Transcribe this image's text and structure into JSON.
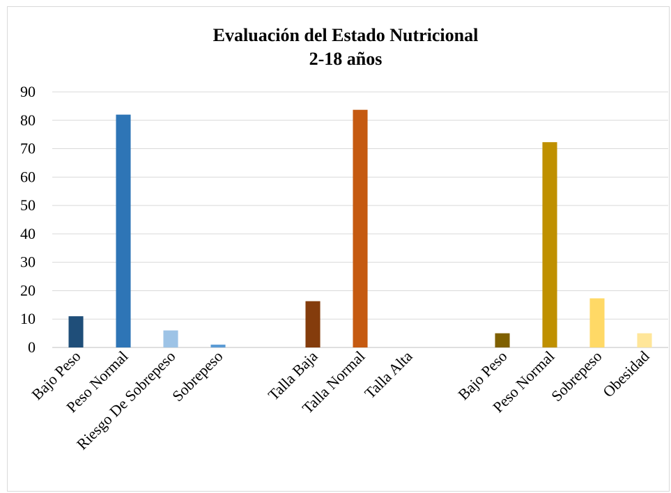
{
  "chart_data": {
    "type": "bar",
    "title": "Evaluación del Estado Nutricional",
    "subtitle": "2-18 años",
    "xlabel": "",
    "ylabel": "",
    "ylim": [
      0,
      90
    ],
    "yticks": [
      "0",
      "10",
      "20",
      "30",
      "40",
      "50",
      "60",
      "70",
      "80",
      "90"
    ],
    "grid": true,
    "legend": "none",
    "groups": [
      {
        "name": "",
        "bars": [
          {
            "label": "Bajo Peso",
            "value": 11,
            "color": "#1f4e79"
          },
          {
            "label": "Peso Normal",
            "value": 82,
            "color": "#2e75b6"
          },
          {
            "label": "Riesgo De Sobrepeso",
            "value": 6,
            "color": "#9dc3e6"
          },
          {
            "label": "Sobrepeso",
            "value": 1,
            "color": "#5b9bd5"
          }
        ]
      },
      {
        "name": "",
        "bars": [
          {
            "label": "Talla Baja",
            "value": 16.3,
            "color": "#843c0c"
          },
          {
            "label": "Talla Normal",
            "value": 83.7,
            "color": "#c55a11"
          },
          {
            "label": "Talla Alta",
            "value": 0,
            "color": "#ed7d31"
          }
        ]
      },
      {
        "name": "",
        "bars": [
          {
            "label": "Bajo Peso",
            "value": 5,
            "color": "#7f6000"
          },
          {
            "label": "Peso Normal",
            "value": 72.3,
            "color": "#bf9000"
          },
          {
            "label": "Sobrepeso",
            "value": 17.3,
            "color": "#ffd966"
          },
          {
            "label": "Obesidad",
            "value": 5,
            "color": "#ffe699"
          }
        ]
      }
    ]
  }
}
